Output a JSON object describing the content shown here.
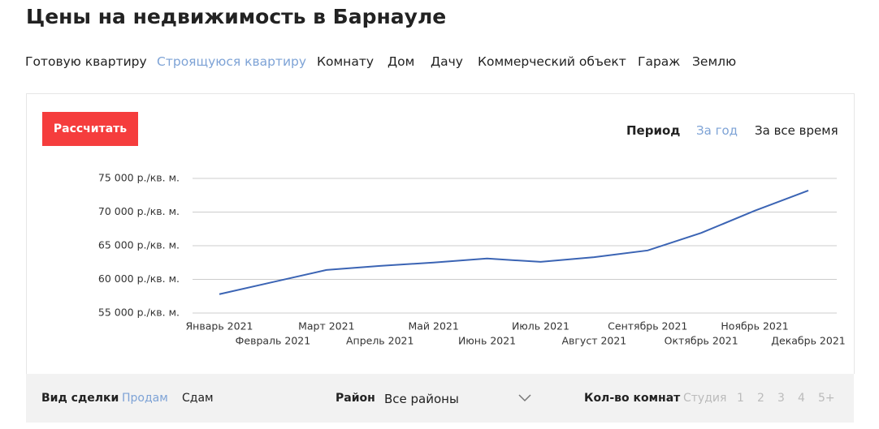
{
  "header": {
    "title": "Цены на недвижимость в Барнауле"
  },
  "tabs": [
    {
      "label": "Готовую квартиру",
      "active": false
    },
    {
      "label": "Строящуюся квартиру",
      "active": true
    },
    {
      "label": "Комнату",
      "active": false
    },
    {
      "label": "Дом",
      "active": false
    },
    {
      "label": "Дачу",
      "active": false
    },
    {
      "label": "Коммерческий объект",
      "active": false
    },
    {
      "label": "Гараж",
      "active": false
    },
    {
      "label": "Землю",
      "active": false
    }
  ],
  "button": "Рассчитать",
  "period": {
    "label": "Период",
    "options": [
      {
        "label": "За год",
        "active": true
      },
      {
        "label": "За все время",
        "active": false
      }
    ]
  },
  "chart_data": {
    "type": "line",
    "categories": [
      "Январь 2021",
      "Февраль 2021",
      "Март 2021",
      "Апрель 2021",
      "Май 2021",
      "Июнь 2021",
      "Июль 2021",
      "Август 2021",
      "Сентябрь 2021",
      "Октябрь 2021",
      "Ноябрь 2021",
      "Декабрь 2021"
    ],
    "series": [
      {
        "color": "#3b64b4",
        "values": [
          57800,
          59600,
          61400,
          62000,
          62500,
          63100,
          62600,
          63300,
          64300,
          66900,
          70200,
          73200
        ]
      }
    ],
    "ylim": [
      55000,
      75000
    ],
    "yticks": [
      {
        "value": 55000,
        "label": "55 000 р./кв. м."
      },
      {
        "value": 60000,
        "label": "60 000 р./кв. м."
      },
      {
        "value": 65000,
        "label": "65 000 р./кв. м."
      },
      {
        "value": 70000,
        "label": "70 000 р./кв. м."
      },
      {
        "value": 75000,
        "label": "75 000 р./кв. м."
      }
    ],
    "grid": true
  },
  "filters": {
    "deal": {
      "label": "Вид сделки",
      "options": [
        {
          "label": "Продам",
          "active": true
        },
        {
          "label": "Сдам",
          "active": false
        }
      ]
    },
    "district": {
      "label": "Район",
      "value": "Все районы"
    },
    "rooms": {
      "label": "Кол-во комнат",
      "options": [
        "Студия",
        "1",
        "2",
        "3",
        "4",
        "5+"
      ]
    }
  }
}
